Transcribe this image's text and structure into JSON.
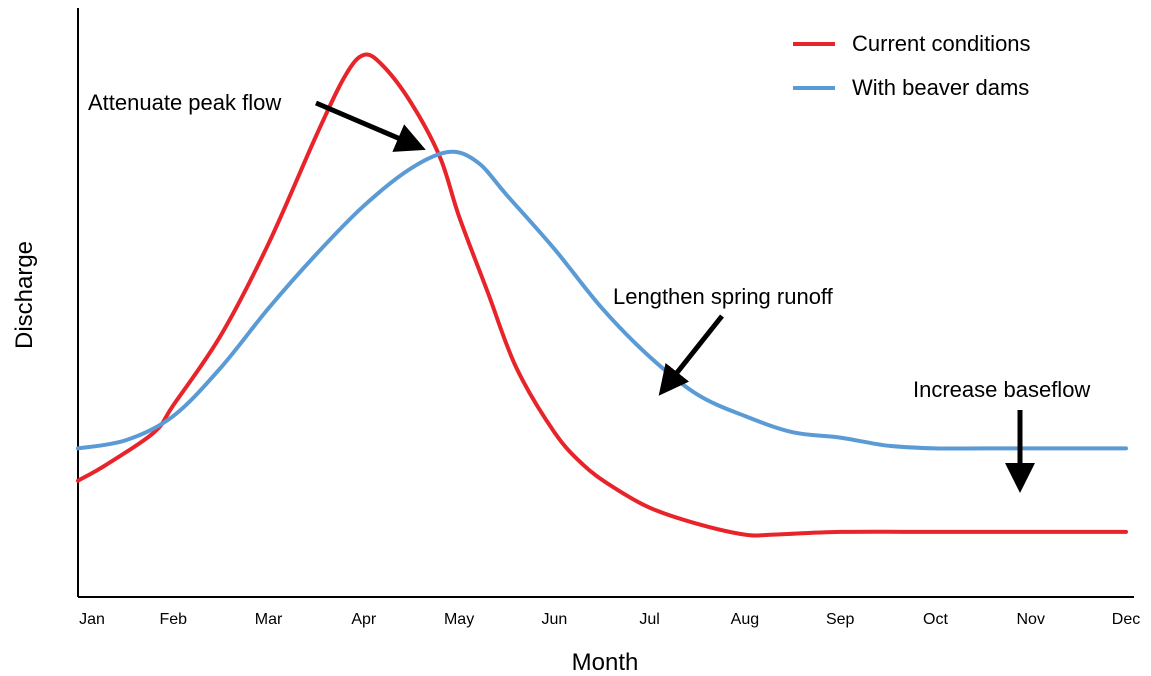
{
  "chart_data": {
    "type": "line",
    "title": "",
    "xlabel": "Month",
    "ylabel": "Discharge",
    "categories": [
      "Jan",
      "Feb",
      "Mar",
      "Apr",
      "May",
      "Jun",
      "Jul",
      "Aug",
      "Sep",
      "Oct",
      "Nov",
      "Dec"
    ],
    "ylim": [
      0,
      100
    ],
    "y_ticks_shown": false,
    "grid": false,
    "legend_position": "top-right",
    "series": [
      {
        "name": "Current conditions",
        "color": "#e8242b",
        "x": [
          0,
          0.3,
          0.8,
          1.0,
          1.5,
          2.0,
          2.5,
          2.8,
          3.0,
          3.2,
          3.5,
          3.8,
          4.0,
          4.3,
          4.6,
          5.0,
          5.3,
          5.6,
          6.0,
          6.5,
          7.0,
          7.3,
          8.0,
          9.0,
          10.0,
          11.0
        ],
        "values": [
          11,
          14,
          20,
          25,
          38,
          55,
          75,
          86,
          90,
          88,
          81,
          71,
          60,
          46,
          32,
          20,
          14,
          10,
          6,
          3,
          1,
          1,
          1.5,
          1.5,
          1.5,
          1.5
        ]
      },
      {
        "name": "With beaver dams",
        "color": "#5b9bd5",
        "x": [
          0,
          0.5,
          1.0,
          1.5,
          2.0,
          2.5,
          3.0,
          3.5,
          3.9,
          4.2,
          4.5,
          5.0,
          5.5,
          6.0,
          6.5,
          7.0,
          7.5,
          8.0,
          8.5,
          9.0,
          9.5,
          10.0,
          10.5,
          11.0
        ],
        "values": [
          17,
          18.5,
          23,
          32,
          43,
          53,
          62,
          69,
          72,
          70,
          64,
          54,
          43,
          34,
          27,
          23,
          20,
          19,
          17.5,
          17,
          17,
          17,
          17,
          17
        ]
      }
    ],
    "annotations": [
      {
        "text": "Attenuate peak flow",
        "target_x": 3.5,
        "target_y": 70
      },
      {
        "text": "Lengthen spring runoff",
        "target_x": 6.1,
        "target_y": 33
      },
      {
        "text": "Increase baseflow",
        "target_x": 9.9,
        "target_y": 17
      }
    ]
  }
}
